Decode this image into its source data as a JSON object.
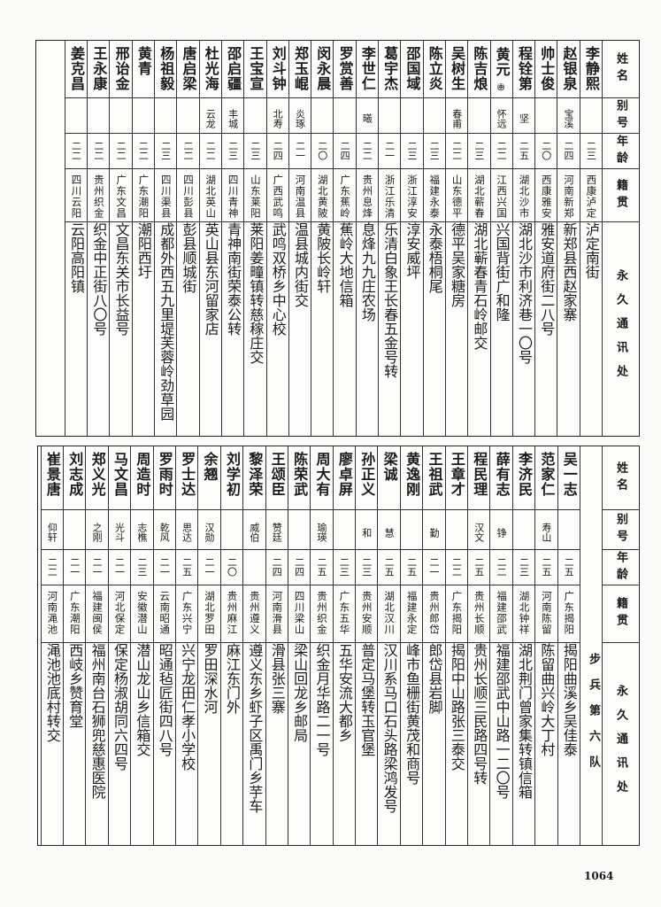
{
  "header": {
    "name": "姓名",
    "alias": "别号",
    "age": "年龄",
    "native": "籍贯",
    "address": "永久通讯处"
  },
  "top_table": {
    "rows": [
      {
        "name": "李静熙",
        "alias": "",
        "age": "二三",
        "native": "西康泸定",
        "address": "泸定南街"
      },
      {
        "name": "赵银泉",
        "alias": "宝溪",
        "age": "二四",
        "native": "河南新郑",
        "address": "新郑县西赵家寨"
      },
      {
        "name": "帅士俊",
        "alias": "",
        "age": "二〇",
        "native": "西康雅安",
        "address": "雅安道府街二八号"
      },
      {
        "name": "程铨第",
        "alias": "坚",
        "age": "二五",
        "native": "湖北沙市",
        "address": "湖北沙市利济巷一〇号"
      },
      {
        "name": "黄元",
        "name_note": "㊥",
        "alias": "怀远",
        "age": "二二",
        "native": "江西兴国",
        "address": "兴国背街广和隆"
      },
      {
        "name": "陈吉烺",
        "alias": "",
        "age": "二三",
        "native": "湖北蕲春",
        "address": "湖北蕲春青石岭邮交"
      },
      {
        "name": "吴树生",
        "alias": "春甫",
        "age": "二二",
        "native": "山东德平",
        "address": "德平吴家糖房"
      },
      {
        "name": "陈立炎",
        "alias": "",
        "age": "二三",
        "native": "福建永泰",
        "address": "永泰梧桐尾"
      },
      {
        "name": "邵国域",
        "alias": "",
        "age": "二三",
        "native": "浙江淳安",
        "address": "淳安威坪"
      },
      {
        "name": "葛宇杰",
        "alias": "",
        "age": "二一",
        "native": "浙江乐清",
        "address": "乐清白象王长春五金号转"
      },
      {
        "name": "李世仁",
        "alias": "曦",
        "age": "二二",
        "native": "贵州息烽",
        "address": "息烽九九庄农场"
      },
      {
        "name": "罗赏善",
        "alias": "",
        "age": "二四",
        "native": "广东蕉岭",
        "address": "蕉岭大地信箱"
      },
      {
        "name": "闵永晨",
        "alias": "",
        "age": "二〇",
        "native": "湖北黄陂",
        "address": "黄陂长岭轩"
      },
      {
        "name": "郑玉崐",
        "alias": "炎琢",
        "age": "二一",
        "native": "河南温县",
        "address": "温县城内街交"
      },
      {
        "name": "刘斗钟",
        "alias": "北寿",
        "age": "二四",
        "native": "广西武鸣",
        "address": "武鸣双桥乡中心校"
      },
      {
        "name": "王宝宣",
        "alias": "",
        "age": "二三",
        "native": "山东莱阳",
        "address": "莱阳姜疃镇转慈稼庄交"
      },
      {
        "name": "邵启疆",
        "alias": "丰城",
        "age": "二三",
        "native": "四川青神",
        "address": "青神南街荣泰公转"
      },
      {
        "name": "杜光海",
        "alias": "云龙",
        "age": "二二",
        "native": "湖北英山",
        "address": "英山县东河留家店"
      },
      {
        "name": "唐启梁",
        "alias": "",
        "age": "二二",
        "native": "四川彭县",
        "address": "彭县顺城街"
      },
      {
        "name": "杨祖毅",
        "alias": "",
        "age": "二三",
        "native": "四川渠县",
        "address": "成都外西五九里堤芙蓉岭劲草园"
      },
      {
        "name": "黄青",
        "alias": "",
        "age": "二二",
        "native": "广东潮阳",
        "address": "潮阳西圩"
      },
      {
        "name": "邢诒金",
        "alias": "",
        "age": "二二",
        "native": "广东文昌",
        "address": "文昌东关市长益号"
      },
      {
        "name": "王永康",
        "alias": "",
        "age": "二二",
        "native": "贵州织金",
        "address": "织金中正街八〇号"
      },
      {
        "name": "姜克昌",
        "alias": "",
        "age": "二二",
        "native": "四川云阳",
        "address": "云阳高阳镇"
      }
    ]
  },
  "bottom_table": {
    "unit_label": "步兵第六队",
    "rows": [
      {
        "name": "吴一志",
        "alias": "",
        "age": "二五",
        "native": "广东揭阳",
        "address": "揭阳曲溪乡吴佳泰"
      },
      {
        "name": "范家仁",
        "alias": "寿山",
        "age": "二五",
        "native": "河南陈留",
        "address": "陈留曲兴岭大丁村"
      },
      {
        "name": "李济民",
        "alias": "",
        "age": "二三",
        "native": "湖北钟祥",
        "address": "湖北荆门曾家集转镇信箱"
      },
      {
        "name": "薛有志",
        "alias": "铮",
        "age": "二二",
        "native": "福建邵武",
        "address": "福建邵武中山路一二〇号"
      },
      {
        "name": "程民理",
        "alias": "汉文",
        "age": "二五",
        "native": "贵州长顺",
        "address": "贵州长顺三民路四号转"
      },
      {
        "name": "王章才",
        "alias": "",
        "age": "二二",
        "native": "广东揭阳",
        "address": "揭阳中山路张三泰交"
      },
      {
        "name": "王祖武",
        "alias": "勤",
        "age": "二一",
        "native": "贵州郎岱",
        "address": "郎岱县岩脚"
      },
      {
        "name": "黄逸刚",
        "alias": "",
        "age": "二五",
        "native": "福建永定",
        "address": "峰市鱼栅街黄茂和商号"
      },
      {
        "name": "梁诚",
        "alias": "慧",
        "age": "二五",
        "native": "湖北汉川",
        "address": "汉川系马口石头路梁鸿发号"
      },
      {
        "name": "孙正义",
        "alias": "和",
        "age": "二三",
        "native": "贵州安顺",
        "address": "普定马堡转玉官堡"
      },
      {
        "name": "廖卓屏",
        "alias": "",
        "age": "二三",
        "native": "广东五华",
        "address": "五华安流大都乡"
      },
      {
        "name": "周大有",
        "alias": "瑜瑛",
        "age": "二五",
        "native": "贵州织金",
        "address": "织金月华路二一号"
      },
      {
        "name": "陈荣武",
        "alias": "",
        "age": "二四",
        "native": "四川梁山",
        "address": "梁山回龙乡邮局"
      },
      {
        "name": "王颂臣",
        "alias": "赞廷",
        "age": "二四",
        "native": "河南滑县",
        "address": "滑县张三寨"
      },
      {
        "name": "黎泽荣",
        "alias": "威伯",
        "age": "",
        "native": "贵州遵义",
        "address": "遵义东乡虾子区禹门乡芋车"
      },
      {
        "name": "刘学初",
        "alias": "",
        "age": "二〇",
        "native": "贵州麻江",
        "address": "麻江东门外"
      },
      {
        "name": "余翘",
        "alias": "汉勋",
        "age": "二一",
        "native": "湖北罗田",
        "address": "罗田深水河"
      },
      {
        "name": "罗士达",
        "alias": "思达",
        "age": "二五",
        "native": "广东兴宁",
        "address": "兴宁龙田仁孝小学校"
      },
      {
        "name": "罗雨时",
        "alias": "乾风",
        "age": "二一",
        "native": "云南昭通",
        "address": "昭通毡匠街四八号"
      },
      {
        "name": "周造时",
        "alias": "志樵",
        "age": "二三",
        "native": "安徽潜山",
        "address": "潜山龙山乡信箱交"
      },
      {
        "name": "马文昌",
        "alias": "光斗",
        "age": "二一",
        "native": "河北保定",
        "address": "保定杨淑胡同六四号"
      },
      {
        "name": "郑义光",
        "alias": "之刚",
        "age": "二一",
        "native": "福建闽侯",
        "address": "福州南台石狮兜慈惠医院"
      },
      {
        "name": "刘志成",
        "alias": "",
        "age": "二一",
        "native": "广东潮阳",
        "address": "西岐乡赞育堂"
      },
      {
        "name": "崔景唐",
        "alias": "仰轩",
        "age": "二二",
        "native": "河南渑池",
        "address": "渑池池底村转交"
      }
    ]
  },
  "page_number": "1064"
}
